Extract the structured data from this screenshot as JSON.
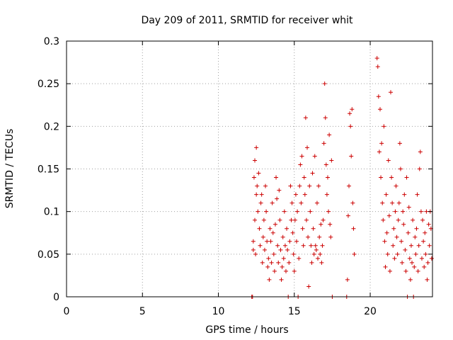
{
  "chart_data": {
    "type": "scatter",
    "title": "Day 209 of 2011, SRMTID for receiver whit",
    "xlabel": "GPS time / hours",
    "ylabel": "SRMTID / TECUs",
    "xlim": [
      0,
      24.1
    ],
    "ylim": [
      0,
      0.3
    ],
    "xticks": [
      0,
      5,
      10,
      15,
      20
    ],
    "xtick_labels": [
      "0",
      "5",
      "10",
      "15",
      "20"
    ],
    "yticks": [
      0,
      0.05,
      0.1,
      0.15,
      0.2,
      0.25,
      0.3
    ],
    "ytick_labels": [
      "0",
      "0.05",
      "0.1",
      "0.15",
      "0.2",
      "0.25",
      "0.3"
    ],
    "grid": true,
    "marker": "+",
    "color": "#cc0000",
    "series": [
      {
        "name": "SRMTID",
        "points": [
          [
            12.2,
            0.0
          ],
          [
            12.25,
            0.0
          ],
          [
            12.3,
            0.055
          ],
          [
            12.3,
            0.065
          ],
          [
            12.35,
            0.14
          ],
          [
            12.4,
            0.16
          ],
          [
            12.4,
            0.09
          ],
          [
            12.45,
            0.05
          ],
          [
            12.5,
            0.175
          ],
          [
            12.5,
            0.12
          ],
          [
            12.55,
            0.13
          ],
          [
            12.6,
            0.1
          ],
          [
            12.65,
            0.145
          ],
          [
            12.7,
            0.08
          ],
          [
            12.75,
            0.06
          ],
          [
            12.8,
            0.11
          ],
          [
            12.85,
            0.12
          ],
          [
            12.9,
            0.04
          ],
          [
            12.95,
            0.07
          ],
          [
            13.0,
            0.09
          ],
          [
            13.05,
            0.055
          ],
          [
            13.1,
            0.13
          ],
          [
            13.15,
            0.1
          ],
          [
            13.2,
            0.065
          ],
          [
            13.25,
            0.035
          ],
          [
            13.3,
            0.045
          ],
          [
            13.35,
            0.02
          ],
          [
            13.4,
            0.08
          ],
          [
            13.45,
            0.065
          ],
          [
            13.5,
            0.04
          ],
          [
            13.55,
            0.11
          ],
          [
            13.6,
            0.075
          ],
          [
            13.65,
            0.05
          ],
          [
            13.7,
            0.03
          ],
          [
            13.75,
            0.085
          ],
          [
            13.8,
            0.14
          ],
          [
            13.85,
            0.115
          ],
          [
            13.9,
            0.06
          ],
          [
            13.95,
            0.04
          ],
          [
            14.0,
            0.125
          ],
          [
            14.05,
            0.09
          ],
          [
            14.1,
            0.055
          ],
          [
            14.15,
            0.02
          ],
          [
            14.2,
            0.035
          ],
          [
            14.25,
            0.07
          ],
          [
            14.3,
            0.045
          ],
          [
            14.35,
            0.1
          ],
          [
            14.4,
            0.06
          ],
          [
            14.45,
            0.03
          ],
          [
            14.5,
            0.08
          ],
          [
            14.55,
            0.055
          ],
          [
            14.6,
            0.0
          ],
          [
            14.65,
            0.04
          ],
          [
            14.7,
            0.065
          ],
          [
            14.75,
            0.13
          ],
          [
            14.8,
            0.09
          ],
          [
            14.85,
            0.11
          ],
          [
            14.9,
            0.075
          ],
          [
            14.95,
            0.05
          ],
          [
            15.0,
            0.03
          ],
          [
            15.05,
            0.09
          ],
          [
            15.1,
            0.12
          ],
          [
            15.15,
            0.065
          ],
          [
            15.2,
            0.1
          ],
          [
            15.25,
            0.0
          ],
          [
            15.3,
            0.045
          ],
          [
            15.35,
            0.13
          ],
          [
            15.4,
            0.155
          ],
          [
            15.45,
            0.11
          ],
          [
            15.5,
            0.165
          ],
          [
            15.55,
            0.08
          ],
          [
            15.6,
            0.06
          ],
          [
            15.65,
            0.14
          ],
          [
            15.7,
            0.12
          ],
          [
            15.75,
            0.21
          ],
          [
            15.8,
            0.09
          ],
          [
            15.85,
            0.175
          ],
          [
            15.9,
            0.07
          ],
          [
            15.95,
            0.012
          ],
          [
            16.0,
            0.13
          ],
          [
            16.05,
            0.1
          ],
          [
            16.1,
            0.06
          ],
          [
            16.15,
            0.04
          ],
          [
            16.2,
            0.145
          ],
          [
            16.25,
            0.08
          ],
          [
            16.3,
            0.05
          ],
          [
            16.35,
            0.165
          ],
          [
            16.4,
            0.06
          ],
          [
            16.45,
            0.055
          ],
          [
            16.5,
            0.11
          ],
          [
            16.55,
            0.045
          ],
          [
            16.6,
            0.13
          ],
          [
            16.65,
            0.07
          ],
          [
            16.7,
            0.05
          ],
          [
            16.75,
            0.085
          ],
          [
            16.8,
            0.04
          ],
          [
            16.85,
            0.06
          ],
          [
            16.9,
            0.09
          ],
          [
            16.95,
            0.18
          ],
          [
            17.0,
            0.25
          ],
          [
            17.05,
            0.21
          ],
          [
            17.1,
            0.155
          ],
          [
            17.15,
            0.12
          ],
          [
            17.2,
            0.14
          ],
          [
            17.25,
            0.1
          ],
          [
            17.3,
            0.19
          ],
          [
            17.35,
            0.085
          ],
          [
            17.4,
            0.07
          ],
          [
            17.45,
            0.16
          ],
          [
            17.5,
            0.0
          ],
          [
            18.45,
            0.0
          ],
          [
            18.5,
            0.02
          ],
          [
            18.55,
            0.095
          ],
          [
            18.6,
            0.13
          ],
          [
            18.65,
            0.215
          ],
          [
            18.7,
            0.2
          ],
          [
            18.75,
            0.165
          ],
          [
            18.8,
            0.22
          ],
          [
            18.85,
            0.11
          ],
          [
            18.9,
            0.08
          ],
          [
            18.95,
            0.05
          ],
          [
            20.45,
            0.28
          ],
          [
            20.5,
            0.27
          ],
          [
            20.55,
            0.235
          ],
          [
            20.6,
            0.17
          ],
          [
            20.65,
            0.22
          ],
          [
            20.7,
            0.14
          ],
          [
            20.75,
            0.18
          ],
          [
            20.8,
            0.11
          ],
          [
            20.85,
            0.09
          ],
          [
            20.9,
            0.2
          ],
          [
            20.95,
            0.065
          ],
          [
            21.0,
            0.035
          ],
          [
            21.05,
            0.12
          ],
          [
            21.1,
            0.075
          ],
          [
            21.15,
            0.05
          ],
          [
            21.2,
            0.16
          ],
          [
            21.25,
            0.095
          ],
          [
            21.3,
            0.03
          ],
          [
            21.35,
            0.24
          ],
          [
            21.4,
            0.14
          ],
          [
            21.45,
            0.11
          ],
          [
            21.5,
            0.06
          ],
          [
            21.55,
            0.08
          ],
          [
            21.6,
            0.045
          ],
          [
            21.65,
            0.1
          ],
          [
            21.7,
            0.13
          ],
          [
            21.75,
            0.07
          ],
          [
            21.8,
            0.05
          ],
          [
            21.85,
            0.09
          ],
          [
            21.9,
            0.11
          ],
          [
            21.95,
            0.18
          ],
          [
            22.0,
            0.15
          ],
          [
            22.05,
            0.065
          ],
          [
            22.1,
            0.04
          ],
          [
            22.15,
            0.1
          ],
          [
            22.2,
            0.085
          ],
          [
            22.25,
            0.12
          ],
          [
            22.3,
            0.055
          ],
          [
            22.35,
            0.03
          ],
          [
            22.4,
            0.14
          ],
          [
            22.45,
            0.0
          ],
          [
            22.5,
            0.075
          ],
          [
            22.55,
            0.105
          ],
          [
            22.6,
            0.045
          ],
          [
            22.65,
            0.02
          ],
          [
            22.7,
            0.06
          ],
          [
            22.75,
            0.04
          ],
          [
            22.8,
            0.09
          ],
          [
            22.85,
            0.0
          ],
          [
            22.9,
            0.035
          ],
          [
            22.95,
            0.07
          ],
          [
            23.0,
            0.05
          ],
          [
            23.05,
            0.08
          ],
          [
            23.1,
            0.12
          ],
          [
            23.15,
            0.03
          ],
          [
            23.2,
            0.06
          ],
          [
            23.25,
            0.15
          ],
          [
            23.3,
            0.17
          ],
          [
            23.35,
            0.1
          ],
          [
            23.4,
            0.045
          ],
          [
            23.45,
            0.09
          ],
          [
            23.5,
            0.065
          ],
          [
            23.55,
            0.035
          ],
          [
            23.6,
            0.075
          ],
          [
            23.65,
            0.05
          ],
          [
            23.7,
            0.1
          ],
          [
            23.75,
            0.02
          ],
          [
            23.8,
            0.04
          ],
          [
            23.85,
            0.085
          ],
          [
            23.9,
            0.06
          ],
          [
            23.95,
            0.1
          ],
          [
            24.0,
            0.08
          ],
          [
            24.05,
            0.045
          ]
        ]
      }
    ]
  }
}
